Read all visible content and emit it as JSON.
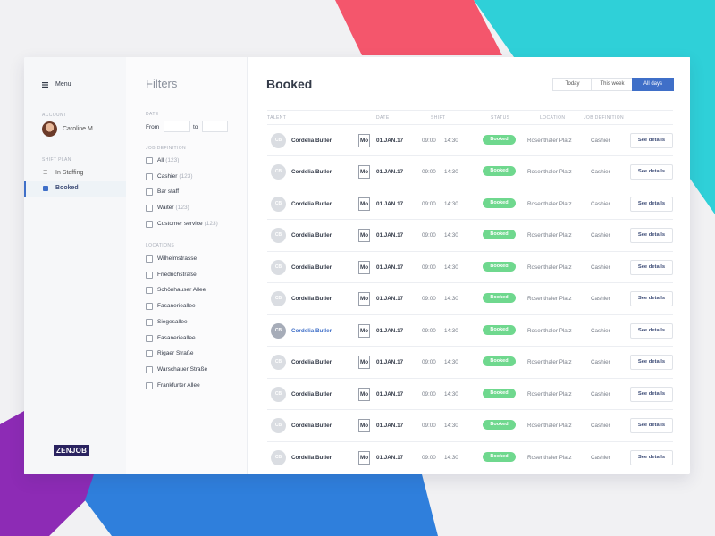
{
  "sidebar": {
    "menu": "Menu",
    "account_label": "ACCOUNT",
    "user": "Caroline M.",
    "section_label": "SHIFT PLAN",
    "items": [
      "In Staffing",
      "Booked"
    ],
    "logo": "ZENJOB"
  },
  "filters": {
    "title": "Filters",
    "date_label": "DATE",
    "from": "From",
    "to": "to",
    "job_label": "JOB DEFINITION",
    "jobs": [
      {
        "label": "All",
        "count": "(123)"
      },
      {
        "label": "Cashier",
        "count": "(123)"
      },
      {
        "label": "Bar staff"
      },
      {
        "label": "Waiter",
        "count": "(123)"
      },
      {
        "label": "Customer service",
        "count": "(123)"
      }
    ],
    "locations_label": "LOCATIONS",
    "locations": [
      "Wilhelmstrasse",
      "Friedrichstraße",
      "Schönhauser Allee",
      "Fasanerieallee",
      "Siegesallee",
      "Fasanerieallee",
      "Rigaer Straße",
      "Warschauer Straße",
      "Frankfurter Allee"
    ]
  },
  "main": {
    "title": "Booked",
    "tabs": [
      "Today",
      "This week",
      "All days"
    ],
    "columns": [
      "TALENT",
      "DATE",
      "SHIFT",
      "STATUS",
      "LOCATION",
      "JOB DEFINITION"
    ],
    "rows": [
      {
        "initials": "CB",
        "name": "Cordelia Butler",
        "day": "Mo",
        "date": "01.JAN.17",
        "start": "09:00",
        "end": "14:30",
        "status": "Booked",
        "location": "Rosenthaler Platz",
        "job": "Cashier",
        "action": "See details"
      },
      {
        "initials": "CB",
        "name": "Cordelia Butler",
        "day": "Mo",
        "date": "01.JAN.17",
        "start": "09:00",
        "end": "14:30",
        "status": "Booked",
        "location": "Rosenthaler Platz",
        "job": "Cashier",
        "action": "See details"
      },
      {
        "initials": "CB",
        "name": "Cordelia Butler",
        "day": "Mo",
        "date": "01.JAN.17",
        "start": "09:00",
        "end": "14:30",
        "status": "Booked",
        "location": "Rosenthaler Platz",
        "job": "Cashier",
        "action": "See details"
      },
      {
        "initials": "CB",
        "name": "Cordelia Butler",
        "day": "Mo",
        "date": "01.JAN.17",
        "start": "09:00",
        "end": "14:30",
        "status": "Booked",
        "location": "Rosenthaler Platz",
        "job": "Cashier",
        "action": "See details"
      },
      {
        "initials": "CB",
        "name": "Cordelia Butler",
        "day": "Mo",
        "date": "01.JAN.17",
        "start": "09:00",
        "end": "14:30",
        "status": "Booked",
        "location": "Rosenthaler Platz",
        "job": "Cashier",
        "action": "See details"
      },
      {
        "initials": "CB",
        "name": "Cordelia Butler",
        "day": "Mo",
        "date": "01.JAN.17",
        "start": "09:00",
        "end": "14:30",
        "status": "Booked",
        "location": "Rosenthaler Platz",
        "job": "Cashier",
        "action": "See details"
      },
      {
        "initials": "CB",
        "name": "Cordelia Butler",
        "day": "Mo",
        "date": "01.JAN.17",
        "start": "09:00",
        "end": "14:30",
        "status": "Booked",
        "location": "Rosenthaler Platz",
        "job": "Cashier",
        "action": "See details"
      },
      {
        "initials": "CB",
        "name": "Cordelia Butler",
        "day": "Mo",
        "date": "01.JAN.17",
        "start": "09:00",
        "end": "14:30",
        "status": "Booked",
        "location": "Rosenthaler Platz",
        "job": "Cashier",
        "action": "See details"
      },
      {
        "initials": "CB",
        "name": "Cordelia Butler",
        "day": "Mo",
        "date": "01.JAN.17",
        "start": "09:00",
        "end": "14:30",
        "status": "Booked",
        "location": "Rosenthaler Platz",
        "job": "Cashier",
        "action": "See details"
      },
      {
        "initials": "CB",
        "name": "Cordelia Butler",
        "day": "Mo",
        "date": "01.JAN.17",
        "start": "09:00",
        "end": "14:30",
        "status": "Booked",
        "location": "Rosenthaler Platz",
        "job": "Cashier",
        "action": "See details"
      },
      {
        "initials": "CB",
        "name": "Cordelia Butler",
        "day": "Mo",
        "date": "01.JAN.17",
        "start": "09:00",
        "end": "14:30",
        "status": "Booked",
        "location": "Rosenthaler Platz",
        "job": "Cashier",
        "action": "See details"
      }
    ]
  }
}
